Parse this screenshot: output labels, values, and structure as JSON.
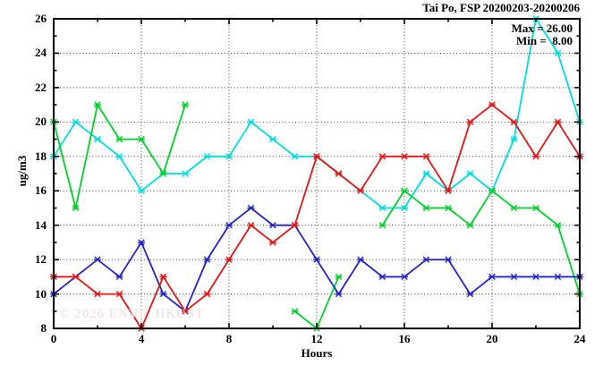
{
  "title": "Tai Po, FSP 20200203-20200206",
  "annotation": {
    "max_label": "Max = 26.00",
    "min_label": "Min =  8.00"
  },
  "watermark": "© 2026 ENVF, HKUST",
  "colors": {
    "axis": "#000000",
    "grid": "#3c3c3c",
    "watermark": "#ecdcdc",
    "background": "#ffffff"
  },
  "chart_data": {
    "type": "line",
    "title": "Tai Po, FSP 20200203-20200206",
    "xlabel": "Hours",
    "ylabel": "ug/m3",
    "xlim": [
      0,
      24
    ],
    "ylim": [
      8,
      26
    ],
    "x_major_ticks": [
      0,
      4,
      8,
      12,
      16,
      20,
      24
    ],
    "x_minor_ticks": [
      2,
      6,
      10,
      14,
      18,
      22
    ],
    "y_major_ticks": [
      8,
      10,
      12,
      14,
      16,
      18,
      20,
      22,
      24,
      26
    ],
    "y_minor_ticks": [
      9,
      11,
      13,
      15,
      17,
      19,
      21,
      23,
      25
    ],
    "grid": true,
    "legend_position": "none",
    "stats": {
      "max": 26.0,
      "min": 8.0
    },
    "marker": "asterisk",
    "x": [
      0,
      1,
      2,
      3,
      4,
      5,
      6,
      7,
      8,
      9,
      10,
      11,
      12,
      13,
      14,
      15,
      16,
      17,
      18,
      19,
      20,
      21,
      22,
      23,
      24
    ],
    "series": [
      {
        "name": "cyan",
        "color": "#00dede",
        "values": [
          18,
          20,
          19,
          18,
          16,
          17,
          17,
          18,
          18,
          20,
          19,
          18,
          18,
          17,
          16,
          15,
          15,
          17,
          16,
          17,
          16,
          19,
          26,
          24,
          20
        ]
      },
      {
        "name": "green",
        "color": "#00d22c",
        "values": [
          20,
          15,
          21,
          19,
          19,
          17,
          21,
          null,
          null,
          null,
          null,
          9,
          8,
          11,
          null,
          14,
          16,
          15,
          15,
          14,
          16,
          15,
          15,
          14,
          10
        ]
      },
      {
        "name": "blue",
        "color": "#2424cd",
        "values": [
          10,
          11,
          12,
          11,
          13,
          10,
          9,
          12,
          14,
          15,
          14,
          14,
          12,
          10,
          12,
          11,
          11,
          12,
          12,
          10,
          11,
          11,
          11,
          11,
          11
        ]
      },
      {
        "name": "red",
        "color": "#e81416",
        "values": [
          11,
          11,
          10,
          10,
          8,
          11,
          9,
          10,
          12,
          14,
          13,
          14,
          18,
          17,
          16,
          18,
          18,
          18,
          16,
          20,
          21,
          20,
          18,
          20,
          18
        ]
      }
    ]
  }
}
